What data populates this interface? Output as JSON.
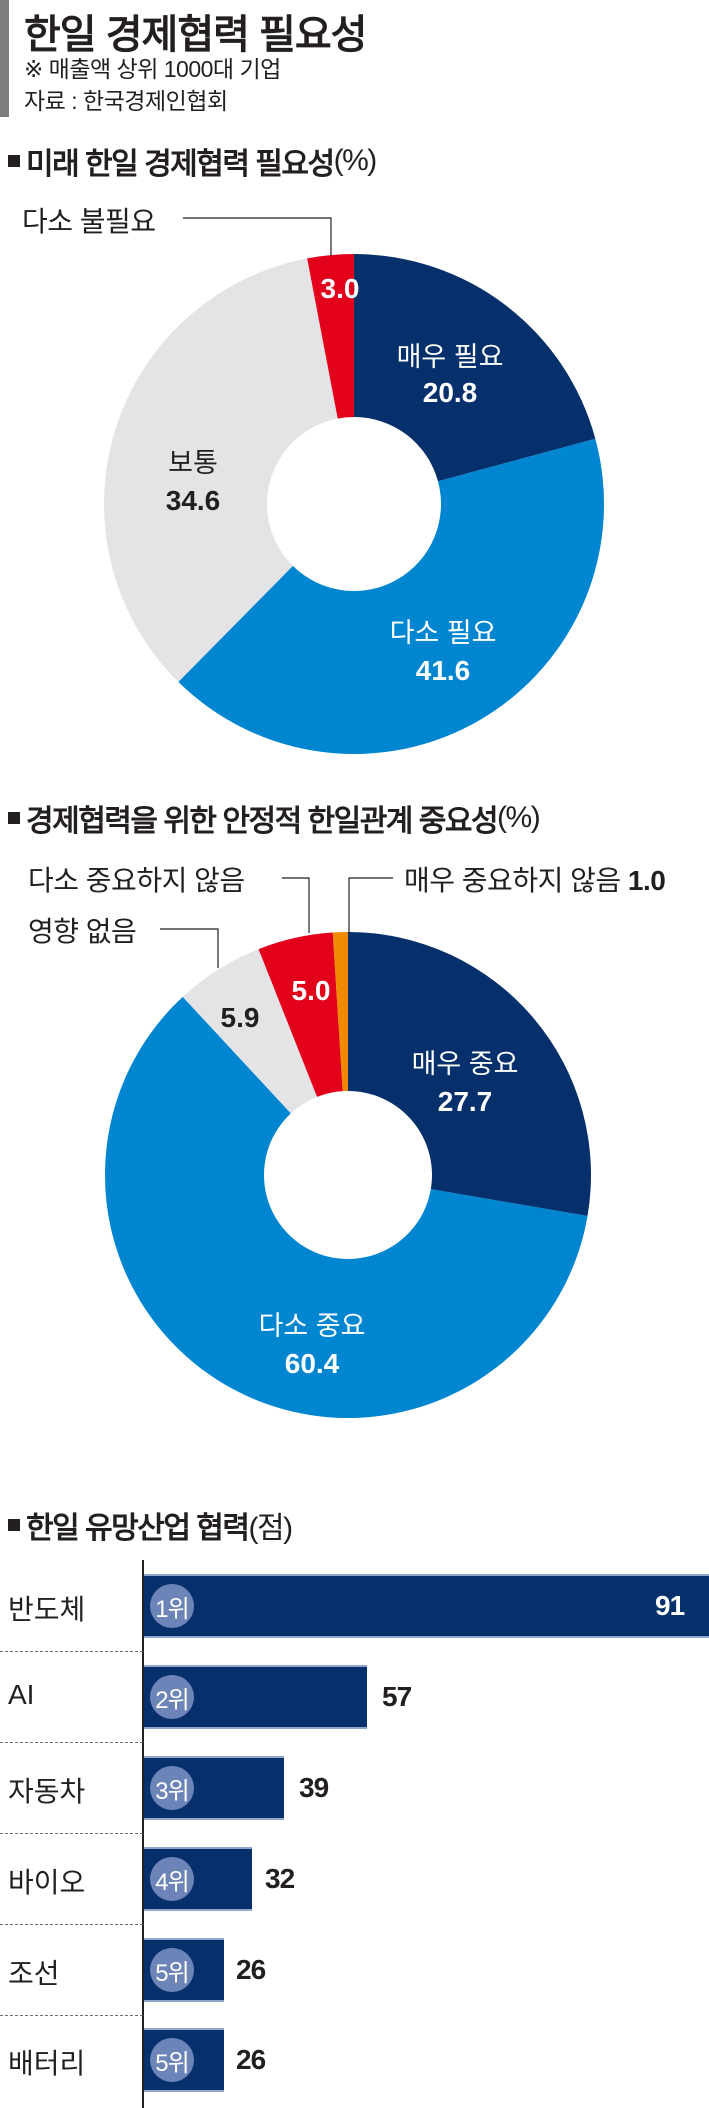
{
  "header": {
    "title": "한일 경제협력 필요성",
    "note": "※ 매출액 상위 1000대 기업",
    "source": "자료 : 한국경제인협회"
  },
  "colors": {
    "navy": "#06306b",
    "blue": "#0085d0",
    "gray": "#e4e4e6",
    "red": "#e2001a",
    "orange": "#f08a00",
    "badge": "#6c84b8"
  },
  "sections": [
    {
      "title": "미래 한일 경제협력 필요성",
      "unit": "(%)"
    },
    {
      "title": "경제협력을 위한 안정적 한일관계 중요성",
      "unit": "(%)"
    },
    {
      "title": "한일 유망산업 협력",
      "unit": "(점)"
    }
  ],
  "chart_data": [
    {
      "type": "pie",
      "variant": "donut",
      "title": "미래 한일 경제협력 필요성(%)",
      "start": "12 o'clock, clockwise",
      "categories": [
        "매우 필요",
        "다소 필요",
        "보통",
        "다소 불필요"
      ],
      "values": [
        20.8,
        41.6,
        34.6,
        3.0
      ],
      "value_labels": [
        "20.8",
        "41.6",
        "34.6",
        "3.0"
      ],
      "colors": [
        "#06306b",
        "#0085d0",
        "#e4e4e6",
        "#e2001a"
      ]
    },
    {
      "type": "pie",
      "variant": "donut",
      "title": "경제협력을 위한 안정적 한일관계 중요성(%)",
      "start": "12 o'clock, clockwise",
      "categories": [
        "매우 중요",
        "다소 중요",
        "영향 없음",
        "다소 중요하지 않음",
        "매우 중요하지 않음"
      ],
      "values": [
        27.7,
        60.4,
        5.9,
        5.0,
        1.0
      ],
      "value_labels": [
        "27.7",
        "60.4",
        "5.9",
        "5.0",
        "1.0"
      ],
      "colors": [
        "#06306b",
        "#0085d0",
        "#e4e4e6",
        "#e2001a",
        "#f08a00"
      ]
    },
    {
      "type": "bar",
      "orientation": "horizontal",
      "title": "한일 유망산업 협력(점)",
      "categories": [
        "반도체",
        "AI",
        "자동차",
        "바이오",
        "조선",
        "배터리"
      ],
      "values": [
        91,
        57,
        39,
        32,
        26,
        26
      ],
      "ranks": [
        "1위",
        "2위",
        "3위",
        "4위",
        "5위",
        "5위"
      ],
      "xlabel": "",
      "ylabel": "",
      "grid": false
    }
  ],
  "donut1": {
    "labels": {
      "seg0_name": "매우 필요",
      "seg0_val": "20.8",
      "seg1_name": "다소 필요",
      "seg1_val": "41.6",
      "seg2_name": "보통",
      "seg2_val": "34.6",
      "seg3_val": "3.0",
      "callout3": "다소 불필요"
    }
  },
  "donut2": {
    "labels": {
      "seg0_name": "매우 중요",
      "seg0_val": "27.7",
      "seg1_name": "다소 중요",
      "seg1_val": "60.4",
      "seg2_val": "5.9",
      "seg3_val": "5.0",
      "callout2": "영향 없음",
      "callout3": "다소 중요하지 않음",
      "callout4_name": "매우 중요하지 않음",
      "callout4_val": "1.0"
    }
  },
  "bars": {
    "items": [
      {
        "label": "반도체",
        "rank": "1위",
        "value": "91"
      },
      {
        "label": "AI",
        "rank": "2위",
        "value": "57"
      },
      {
        "label": "자동차",
        "rank": "3위",
        "value": "39"
      },
      {
        "label": "바이오",
        "rank": "4위",
        "value": "32"
      },
      {
        "label": "조선",
        "rank": "5위",
        "value": "26"
      },
      {
        "label": "배터리",
        "rank": "5위",
        "value": "26"
      }
    ]
  }
}
